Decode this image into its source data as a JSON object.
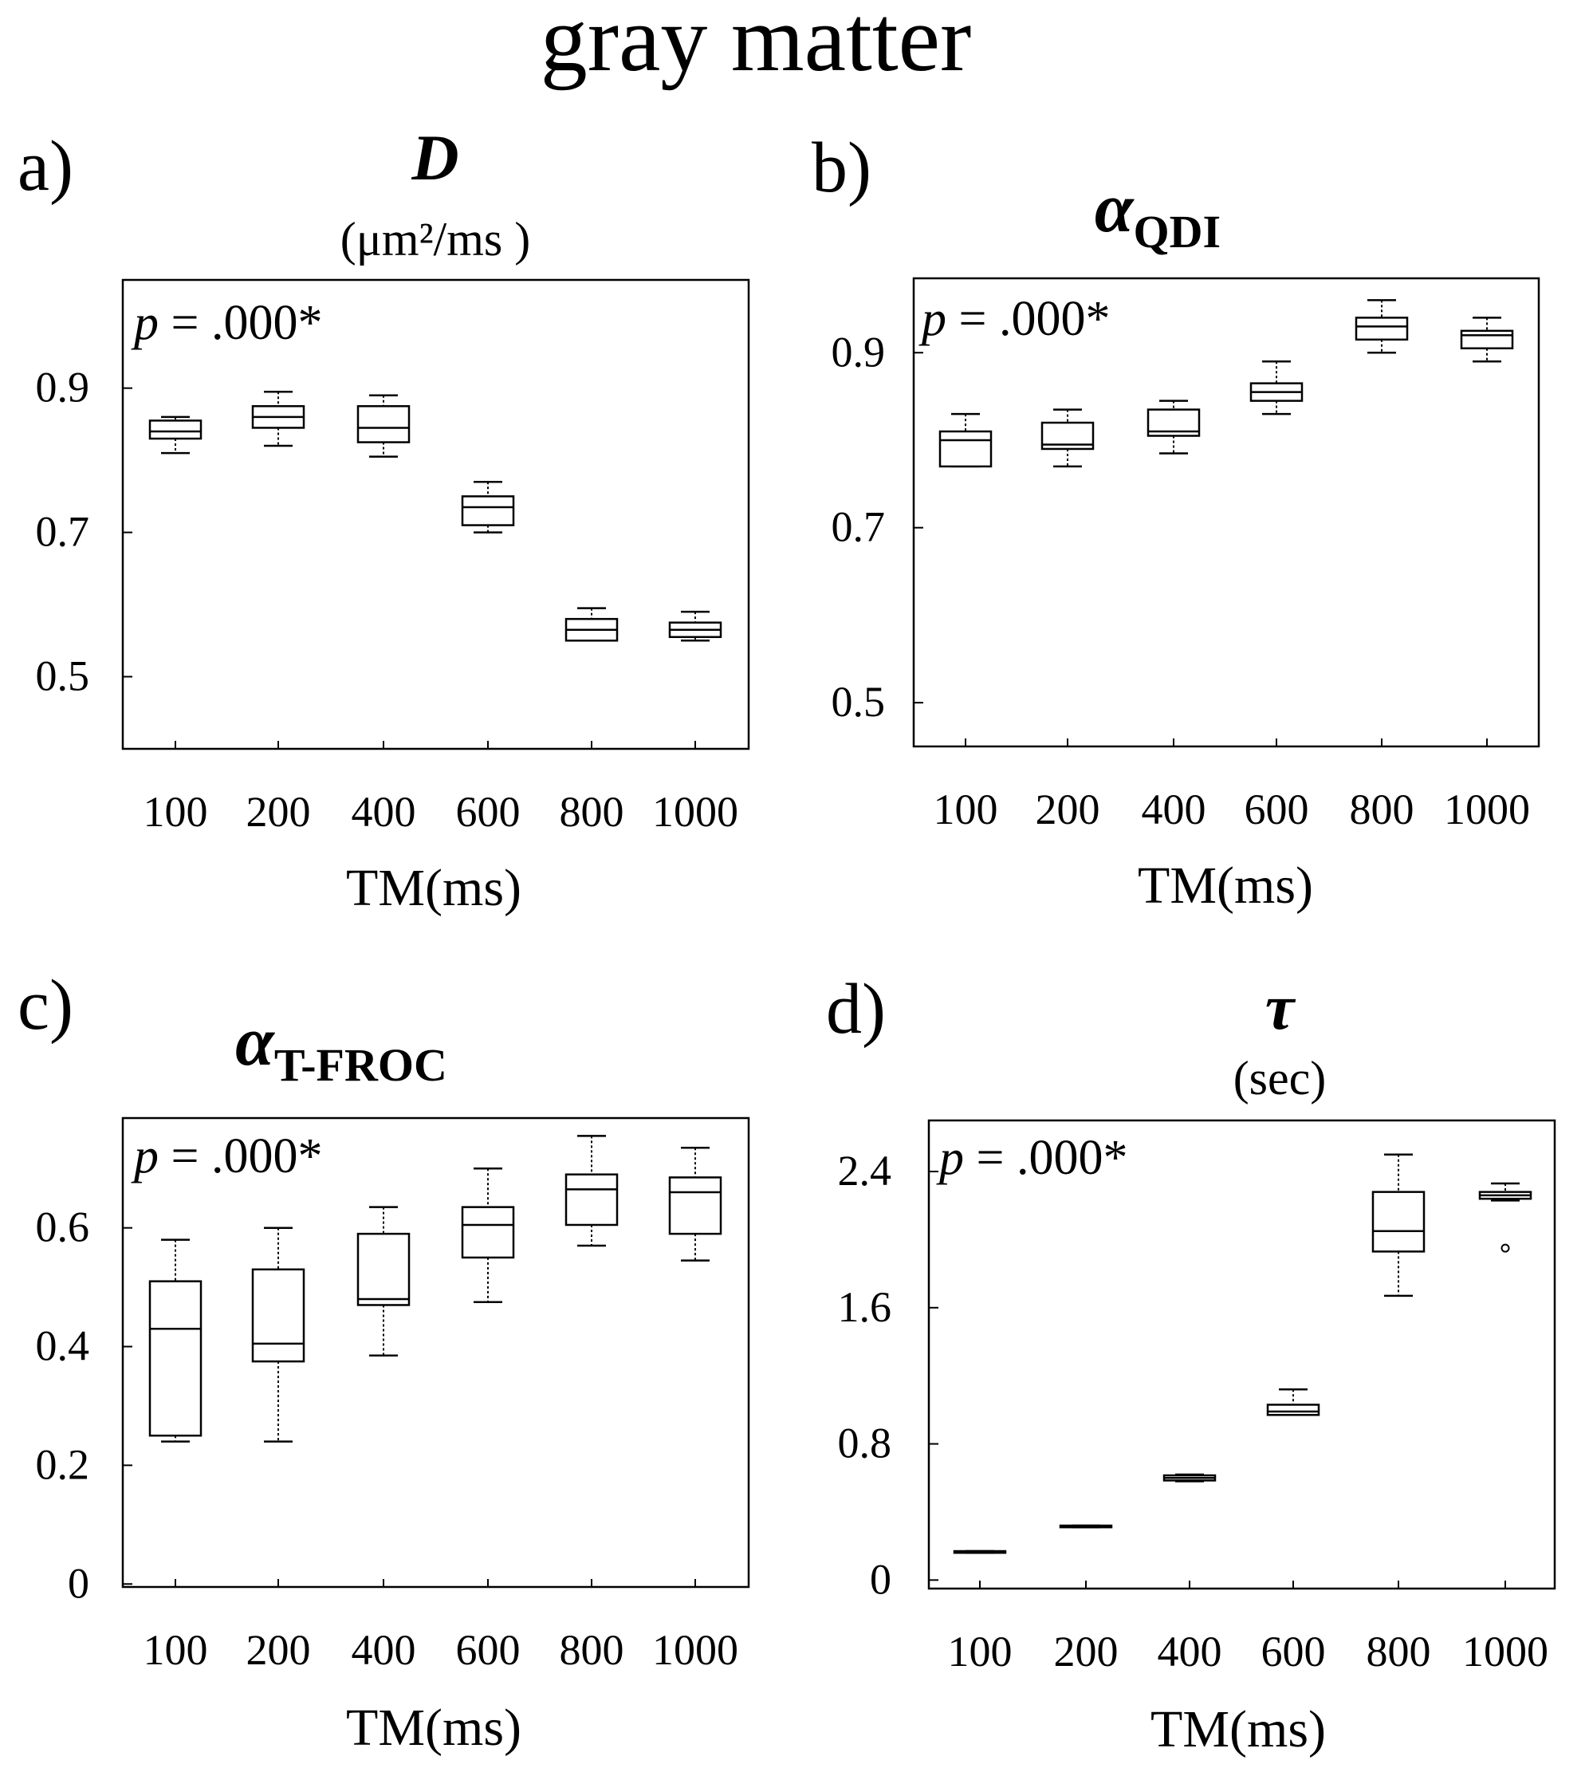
{
  "figure_title": "gray matter",
  "chart_data": [
    {
      "type": "box",
      "panel": "a)",
      "title": "D",
      "subtitle": "(μm²/ms )",
      "xlabel": "TM(ms)",
      "ylabel": "",
      "annotation": "p = .000*",
      "categories": [
        "100",
        "200",
        "400",
        "600",
        "800",
        "1000"
      ],
      "yticks": [
        "0.5",
        "0.7",
        "0.9"
      ],
      "ylim": [
        0.4,
        1.05
      ],
      "boxes": [
        {
          "min": 0.81,
          "q1": 0.83,
          "median": 0.84,
          "q3": 0.855,
          "max": 0.86
        },
        {
          "min": 0.82,
          "q1": 0.845,
          "median": 0.86,
          "q3": 0.875,
          "max": 0.895
        },
        {
          "min": 0.805,
          "q1": 0.825,
          "median": 0.845,
          "q3": 0.875,
          "max": 0.89
        },
        {
          "min": 0.7,
          "q1": 0.71,
          "median": 0.735,
          "q3": 0.75,
          "max": 0.77
        },
        {
          "min": 0.55,
          "q1": 0.55,
          "median": 0.565,
          "q3": 0.58,
          "max": 0.595
        },
        {
          "min": 0.55,
          "q1": 0.555,
          "median": 0.565,
          "q3": 0.575,
          "max": 0.59
        }
      ],
      "outliers": []
    },
    {
      "type": "box",
      "panel": "b)",
      "title": "α",
      "title_sub": "QDI",
      "subtitle": "",
      "xlabel": "TM(ms)",
      "ylabel": "",
      "annotation": "p = .000*",
      "categories": [
        "100",
        "200",
        "400",
        "600",
        "800",
        "1000"
      ],
      "yticks": [
        "0.5",
        "0.7",
        "0.9"
      ],
      "ylim": [
        0.45,
        0.985
      ],
      "boxes": [
        {
          "min": 0.77,
          "q1": 0.77,
          "median": 0.8,
          "q3": 0.81,
          "max": 0.83
        },
        {
          "min": 0.77,
          "q1": 0.79,
          "median": 0.795,
          "q3": 0.82,
          "max": 0.835
        },
        {
          "min": 0.785,
          "q1": 0.805,
          "median": 0.81,
          "q3": 0.835,
          "max": 0.845
        },
        {
          "min": 0.83,
          "q1": 0.845,
          "median": 0.855,
          "q3": 0.865,
          "max": 0.89
        },
        {
          "min": 0.9,
          "q1": 0.915,
          "median": 0.93,
          "q3": 0.94,
          "max": 0.96
        },
        {
          "min": 0.89,
          "q1": 0.905,
          "median": 0.92,
          "q3": 0.925,
          "max": 0.94
        }
      ],
      "outliers": []
    },
    {
      "type": "box",
      "panel": "c)",
      "title": "α",
      "title_sub": "T-FROC",
      "subtitle": "",
      "xlabel": "TM(ms)",
      "ylabel": "",
      "annotation": "p = .000*",
      "categories": [
        "100",
        "200",
        "400",
        "600",
        "800",
        "1000"
      ],
      "yticks": [
        "0",
        "0.2",
        "0.4",
        "0.6"
      ],
      "ylim": [
        -0.005,
        0.785
      ],
      "boxes": [
        {
          "min": 0.24,
          "q1": 0.25,
          "median": 0.43,
          "q3": 0.51,
          "max": 0.58
        },
        {
          "min": 0.24,
          "q1": 0.375,
          "median": 0.405,
          "q3": 0.53,
          "max": 0.6
        },
        {
          "min": 0.385,
          "q1": 0.47,
          "median": 0.48,
          "q3": 0.59,
          "max": 0.635
        },
        {
          "min": 0.475,
          "q1": 0.55,
          "median": 0.605,
          "q3": 0.635,
          "max": 0.7
        },
        {
          "min": 0.57,
          "q1": 0.605,
          "median": 0.665,
          "q3": 0.69,
          "max": 0.755
        },
        {
          "min": 0.545,
          "q1": 0.59,
          "median": 0.66,
          "q3": 0.685,
          "max": 0.735
        }
      ],
      "outliers": []
    },
    {
      "type": "box",
      "panel": "d)",
      "title": "τ",
      "subtitle": "(sec)",
      "xlabel": "TM(ms)",
      "ylabel": "",
      "annotation": "p = .000*",
      "categories": [
        "100",
        "200",
        "400",
        "600",
        "800",
        "1000"
      ],
      "yticks": [
        "0",
        "0.8",
        "1.6",
        "2.4"
      ],
      "ylim": [
        -0.05,
        2.7
      ],
      "boxes": [
        {
          "min": 0.16,
          "q1": 0.16,
          "median": 0.165,
          "q3": 0.17,
          "max": 0.17
        },
        {
          "min": 0.31,
          "q1": 0.31,
          "median": 0.315,
          "q3": 0.32,
          "max": 0.32
        },
        {
          "min": 0.58,
          "q1": 0.585,
          "median": 0.6,
          "q3": 0.615,
          "max": 0.62
        },
        {
          "min": 0.97,
          "q1": 0.97,
          "median": 0.99,
          "q3": 1.03,
          "max": 1.12
        },
        {
          "min": 1.67,
          "q1": 1.93,
          "median": 2.05,
          "q3": 2.28,
          "max": 2.5
        },
        {
          "min": 2.23,
          "q1": 2.24,
          "median": 2.26,
          "q3": 2.28,
          "max": 2.33
        }
      ],
      "outliers": [
        {
          "category": "1000",
          "value": 1.95
        }
      ]
    }
  ]
}
